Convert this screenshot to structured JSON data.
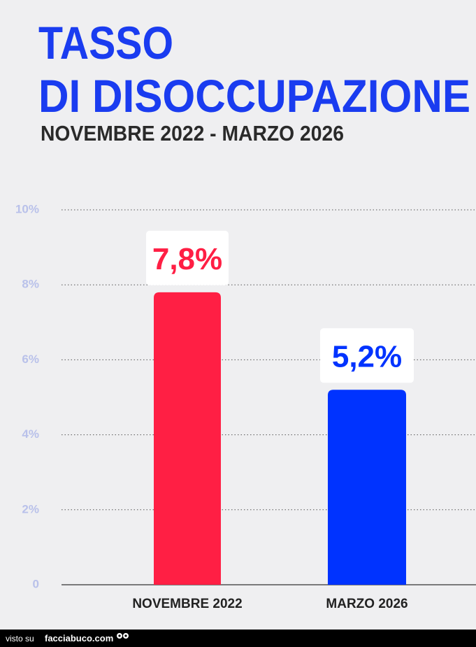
{
  "chart_data": {
    "type": "bar",
    "title": [
      "TASSO",
      "DI DISOCCUPAZIONE"
    ],
    "subtitle": "NOVEMBRE 2022 - MARZO 2026",
    "categories": [
      "NOVEMBRE 2022",
      "MARZO 2026"
    ],
    "values": [
      7.8,
      5.2
    ],
    "value_labels": [
      "7,8%",
      "5,2%"
    ],
    "colors": [
      "#ff1f44",
      "#0033ff"
    ],
    "ylim": [
      0,
      10
    ],
    "yticks": [
      0,
      {
        "value": 2,
        "label": "2%"
      },
      {
        "value": 4,
        "label": "4%"
      },
      {
        "value": 6,
        "label": "6%"
      },
      {
        "value": 8,
        "label": "8%"
      },
      {
        "value": 10,
        "label": "10%"
      }
    ],
    "grid": true
  },
  "footer": {
    "prefix": "visto su",
    "site": "facciabuco.com"
  }
}
